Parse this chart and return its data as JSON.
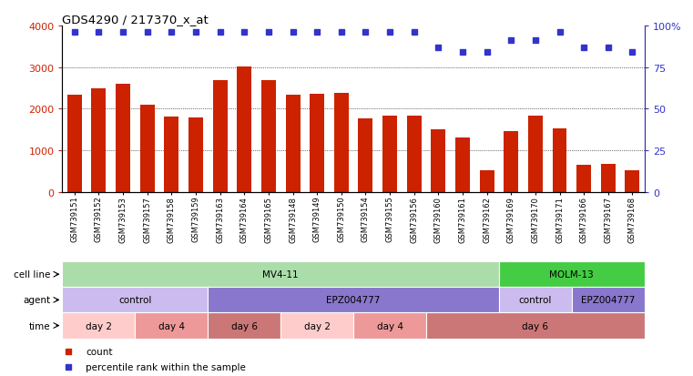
{
  "title": "GDS4290 / 217370_x_at",
  "samples": [
    "GSM739151",
    "GSM739152",
    "GSM739153",
    "GSM739157",
    "GSM739158",
    "GSM739159",
    "GSM739163",
    "GSM739164",
    "GSM739165",
    "GSM739148",
    "GSM739149",
    "GSM739150",
    "GSM739154",
    "GSM739155",
    "GSM739156",
    "GSM739160",
    "GSM739161",
    "GSM739162",
    "GSM739169",
    "GSM739170",
    "GSM739171",
    "GSM739166",
    "GSM739167",
    "GSM739168"
  ],
  "counts": [
    2330,
    2490,
    2600,
    2100,
    1800,
    1780,
    2680,
    3020,
    2680,
    2340,
    2360,
    2380,
    1770,
    1820,
    1820,
    1510,
    1310,
    520,
    1450,
    1820,
    1530,
    640,
    660,
    520
  ],
  "percentile_ranks": [
    96,
    96,
    96,
    96,
    96,
    96,
    96,
    96,
    96,
    96,
    96,
    96,
    96,
    96,
    96,
    87,
    84,
    84,
    91,
    91,
    96,
    87,
    87,
    84
  ],
  "bar_color": "#cc2200",
  "dot_color": "#3333cc",
  "ylim_left": [
    0,
    4000
  ],
  "ylim_right": [
    0,
    100
  ],
  "yticks_left": [
    0,
    1000,
    2000,
    3000,
    4000
  ],
  "ytick_labels_left": [
    "0",
    "1000",
    "2000",
    "3000",
    "4000"
  ],
  "yticks_right": [
    0,
    25,
    50,
    75,
    100
  ],
  "ytick_labels_right": [
    "0",
    "25",
    "50",
    "75",
    "100%"
  ],
  "grid_values": [
    1000,
    2000,
    3000
  ],
  "cell_line_row": {
    "label": "cell line",
    "segments": [
      {
        "text": "MV4-11",
        "start": 0,
        "end": 18,
        "color": "#aaddaa"
      },
      {
        "text": "MOLM-13",
        "start": 18,
        "end": 24,
        "color": "#44cc44"
      }
    ]
  },
  "agent_row": {
    "label": "agent",
    "segments": [
      {
        "text": "control",
        "start": 0,
        "end": 6,
        "color": "#ccbbee"
      },
      {
        "text": "EPZ004777",
        "start": 6,
        "end": 18,
        "color": "#8877cc"
      },
      {
        "text": "control",
        "start": 18,
        "end": 21,
        "color": "#ccbbee"
      },
      {
        "text": "EPZ004777",
        "start": 21,
        "end": 24,
        "color": "#8877cc"
      }
    ]
  },
  "time_row": {
    "label": "time",
    "segments": [
      {
        "text": "day 2",
        "start": 0,
        "end": 3,
        "color": "#ffcccc"
      },
      {
        "text": "day 4",
        "start": 3,
        "end": 6,
        "color": "#ee9999"
      },
      {
        "text": "day 6",
        "start": 6,
        "end": 9,
        "color": "#cc7777"
      },
      {
        "text": "day 2",
        "start": 9,
        "end": 12,
        "color": "#ffcccc"
      },
      {
        "text": "day 4",
        "start": 12,
        "end": 15,
        "color": "#ee9999"
      },
      {
        "text": "day 6",
        "start": 15,
        "end": 24,
        "color": "#cc7777"
      }
    ]
  },
  "legend": [
    {
      "color": "#cc2200",
      "label": "count"
    },
    {
      "color": "#3333cc",
      "label": "percentile rank within the sample"
    }
  ],
  "background_color": "#ffffff"
}
